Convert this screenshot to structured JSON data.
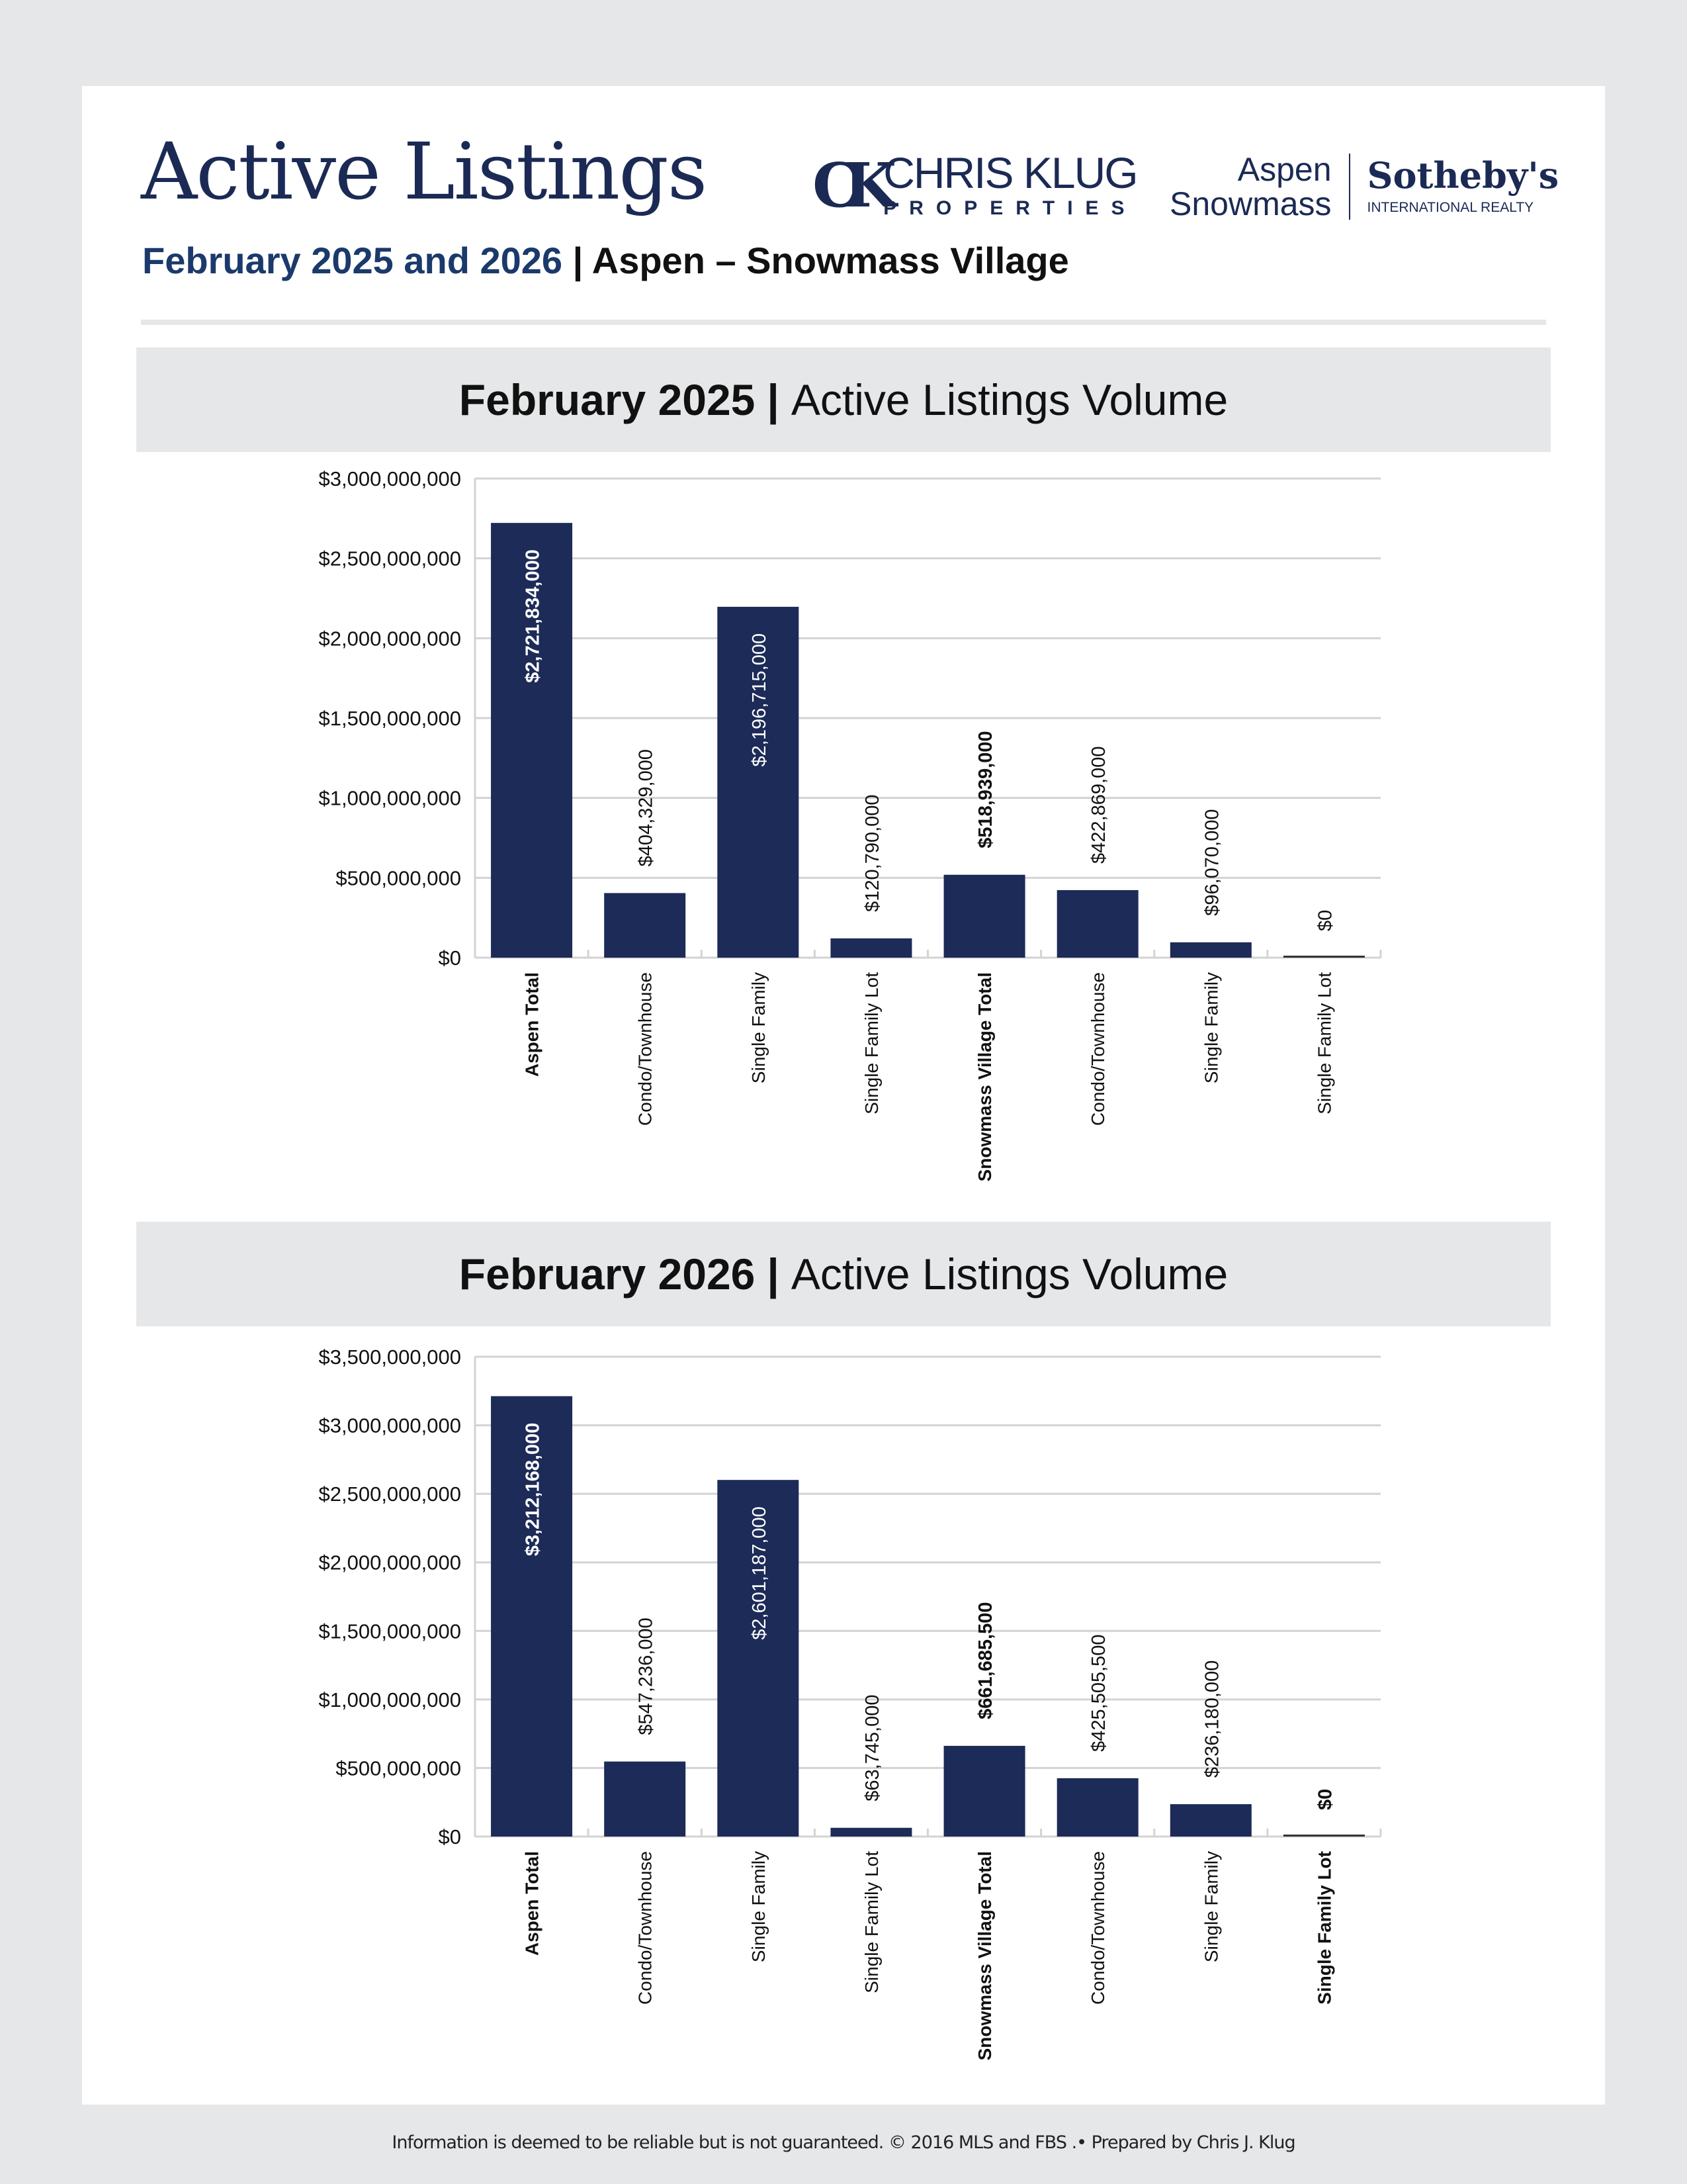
{
  "header": {
    "title": "Active Listings",
    "subtitle_period": "February 2025 and 2026",
    "subtitle_sep": " | ",
    "subtitle_area": "Aspen – Snowmass Village",
    "logo_ck_mark": "CK",
    "logo_ck_name": "CHRIS KLUG",
    "logo_ck_sub": "PROPERTIES",
    "logo_sir_line1": "Aspen",
    "logo_sir_line2": "Snowmass",
    "logo_sir_brand": "Sotheby's",
    "logo_sir_sub": "INTERNATIONAL REALTY"
  },
  "sections": [
    {
      "period": "February 2025",
      "sep": "|",
      "label": "Active Listings Volume"
    },
    {
      "period": "February 2026",
      "sep": "|",
      "label": "Active Listings Volume"
    }
  ],
  "colors": {
    "bar": "#1c2b57",
    "grid": "#d3d3d3",
    "navy": "#1b2a55"
  },
  "chart_data": [
    {
      "type": "bar",
      "title": "February 2025 | Active Listings Volume",
      "categories": [
        "Aspen Total",
        "Condo/Townhouse",
        "Single Family",
        "Single Family Lot",
        "Snowmass Village Total",
        "Condo/Townhouse",
        "Single Family",
        "Single Family Lot"
      ],
      "category_bold": [
        true,
        false,
        false,
        false,
        true,
        false,
        false,
        false
      ],
      "values": [
        2721834000,
        404329000,
        2196715000,
        120790000,
        518939000,
        422869000,
        96070000,
        0
      ],
      "data_labels": [
        "$2,721,834,000",
        "$404,329,000",
        "$2,196,715,000",
        "$120,790,000",
        "$518,939,000",
        "$422,869,000",
        "$96,070,000",
        "$0"
      ],
      "yticks": [
        "$0",
        "$500,000,000",
        "$1,000,000,000",
        "$1,500,000,000",
        "$2,000,000,000",
        "$2,500,000,000",
        "$3,000,000,000"
      ],
      "ylim": [
        0,
        3000000000
      ],
      "grid": true
    },
    {
      "type": "bar",
      "title": "February 2026 | Active Listings Volume",
      "categories": [
        "Aspen Total",
        "Condo/Townhouse",
        "Single Family",
        "Single Family Lot",
        "Snowmass Village Total",
        "Condo/Townhouse",
        "Single Family",
        "Single Family Lot"
      ],
      "category_bold": [
        true,
        false,
        false,
        false,
        true,
        false,
        false,
        true
      ],
      "values": [
        3212168000,
        547236000,
        2601187000,
        63745000,
        661685500,
        425505500,
        236180000,
        0
      ],
      "data_labels": [
        "$3,212,168,000",
        "$547,236,000",
        "$2,601,187,000",
        "$63,745,000",
        "$661,685,500",
        "$425,505,500",
        "$236,180,000",
        "$0"
      ],
      "yticks": [
        "$0",
        "$500,000,000",
        "$1,000,000,000",
        "$1,500,000,000",
        "$2,000,000,000",
        "$2,500,000,000",
        "$3,000,000,000",
        "$3,500,000,000"
      ],
      "ylim": [
        0,
        3500000000
      ],
      "grid": true
    }
  ],
  "footer": "Information is deemed to be reliable but is not guaranteed. © 2016 MLS and FBS .• Prepared by Chris J. Klug"
}
